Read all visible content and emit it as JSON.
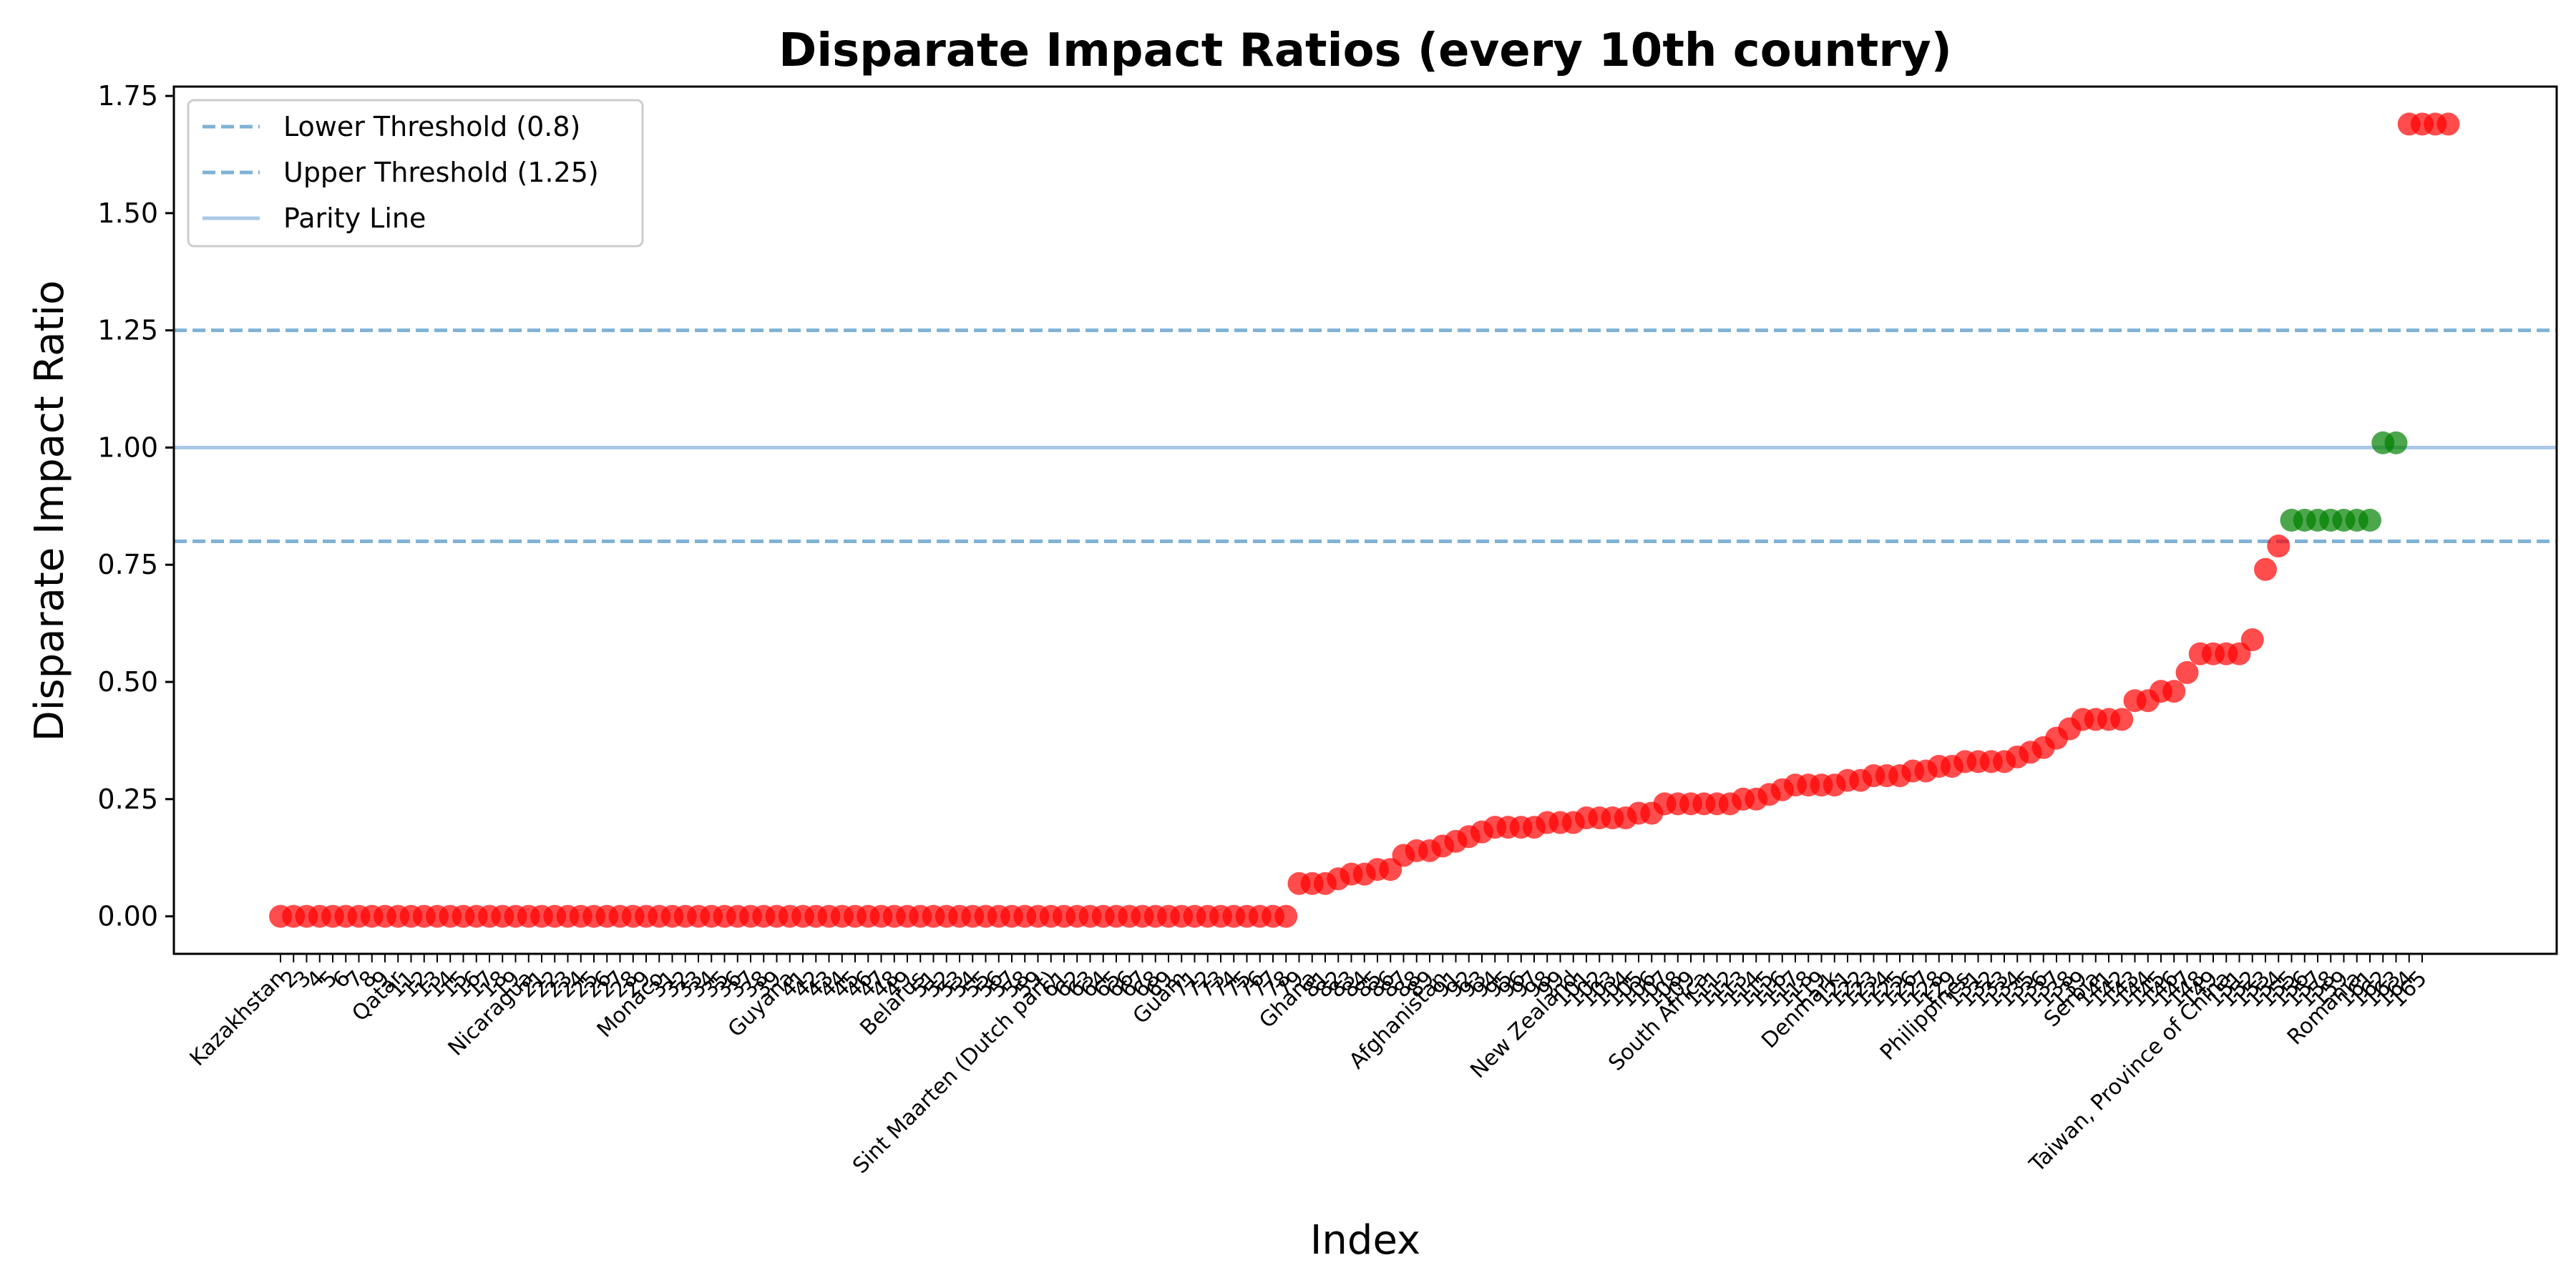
{
  "chart_data": {
    "type": "scatter",
    "title": "Disparate Impact Ratios (every 10th country)",
    "xlabel": "Index",
    "ylabel": "Disparate Impact Ratio",
    "ylim": [
      -0.08,
      1.77
    ],
    "yticks": [
      "0.00",
      "0.25",
      "0.50",
      "0.75",
      "1.00",
      "1.25",
      "1.50",
      "1.75"
    ],
    "grid": false,
    "legend_position": "top-left",
    "reference_lines": [
      {
        "name": "Lower Threshold (0.8)",
        "y": 0.8,
        "style": "dashed",
        "color": "#7fb2d5"
      },
      {
        "name": "Upper Threshold (1.25)",
        "y": 1.25,
        "style": "dashed",
        "color": "#7fb2d5"
      },
      {
        "name": "Parity Line",
        "y": 1.0,
        "style": "solid",
        "color": "#a9c8e8"
      }
    ],
    "colors": {
      "below_threshold": "#ff0000",
      "within_threshold": "#008000"
    },
    "x_tick_labels": [
      "Kazakhstan",
      "2",
      "3",
      "4",
      "5",
      "6",
      "7",
      "8",
      "9",
      "Qatar",
      "11",
      "12",
      "13",
      "14",
      "15",
      "16",
      "17",
      "18",
      "19",
      "Nicaragua",
      "21",
      "22",
      "23",
      "24",
      "25",
      "26",
      "27",
      "28",
      "29",
      "Monaco",
      "31",
      "32",
      "33",
      "34",
      "35",
      "36",
      "37",
      "38",
      "39",
      "Guyana",
      "41",
      "42",
      "43",
      "44",
      "45",
      "46",
      "47",
      "48",
      "49",
      "Belarus",
      "51",
      "52",
      "53",
      "54",
      "55",
      "56",
      "57",
      "58",
      "59",
      "Sint Maarten (Dutch part)",
      "61",
      "62",
      "63",
      "64",
      "65",
      "66",
      "67",
      "68",
      "69",
      "Guam",
      "71",
      "72",
      "73",
      "74",
      "75",
      "76",
      "77",
      "78",
      "79",
      "Ghana",
      "81",
      "82",
      "83",
      "84",
      "85",
      "86",
      "87",
      "88",
      "89",
      "Afghanistan",
      "91",
      "92",
      "93",
      "94",
      "95",
      "96",
      "97",
      "98",
      "99",
      "New Zealand",
      "101",
      "102",
      "103",
      "104",
      "105",
      "106",
      "107",
      "108",
      "109",
      "South Africa",
      "111",
      "112",
      "113",
      "114",
      "115",
      "116",
      "117",
      "118",
      "119",
      "Denmark",
      "121",
      "122",
      "123",
      "124",
      "125",
      "126",
      "127",
      "128",
      "129",
      "Philippines",
      "131",
      "132",
      "133",
      "134",
      "135",
      "136",
      "137",
      "138",
      "139",
      "Serbia",
      "141",
      "142",
      "143",
      "144",
      "145",
      "146",
      "147",
      "148",
      "149",
      "Taiwan, Province of China",
      "151",
      "152",
      "153",
      "154",
      "155",
      "156",
      "157",
      "158",
      "159",
      "Romania",
      "161",
      "162",
      "163",
      "164",
      "165"
    ],
    "values": [
      0.0,
      0.0,
      0.0,
      0.0,
      0.0,
      0.0,
      0.0,
      0.0,
      0.0,
      0.0,
      0.0,
      0.0,
      0.0,
      0.0,
      0.0,
      0.0,
      0.0,
      0.0,
      0.0,
      0.0,
      0.0,
      0.0,
      0.0,
      0.0,
      0.0,
      0.0,
      0.0,
      0.0,
      0.0,
      0.0,
      0.0,
      0.0,
      0.0,
      0.0,
      0.0,
      0.0,
      0.0,
      0.0,
      0.0,
      0.0,
      0.0,
      0.0,
      0.0,
      0.0,
      0.0,
      0.0,
      0.0,
      0.0,
      0.0,
      0.0,
      0.0,
      0.0,
      0.0,
      0.0,
      0.0,
      0.0,
      0.0,
      0.0,
      0.0,
      0.0,
      0.0,
      0.0,
      0.0,
      0.0,
      0.0,
      0.0,
      0.0,
      0.0,
      0.0,
      0.0,
      0.0,
      0.0,
      0.0,
      0.0,
      0.0,
      0.0,
      0.0,
      0.0,
      0.07,
      0.07,
      0.07,
      0.08,
      0.09,
      0.09,
      0.1,
      0.1,
      0.13,
      0.14,
      0.14,
      0.15,
      0.16,
      0.17,
      0.18,
      0.19,
      0.19,
      0.19,
      0.19,
      0.2,
      0.2,
      0.2,
      0.21,
      0.21,
      0.21,
      0.21,
      0.22,
      0.22,
      0.24,
      0.24,
      0.24,
      0.24,
      0.24,
      0.24,
      0.25,
      0.25,
      0.26,
      0.27,
      0.28,
      0.28,
      0.28,
      0.28,
      0.29,
      0.29,
      0.3,
      0.3,
      0.3,
      0.31,
      0.31,
      0.32,
      0.32,
      0.33,
      0.33,
      0.33,
      0.33,
      0.34,
      0.35,
      0.36,
      0.38,
      0.4,
      0.42,
      0.42,
      0.42,
      0.42,
      0.46,
      0.46,
      0.48,
      0.48,
      0.52,
      0.56,
      0.56,
      0.56,
      0.56,
      0.59,
      0.74,
      0.79,
      0.845,
      0.845,
      0.845,
      0.845,
      0.845,
      0.845,
      0.845,
      1.01,
      1.01,
      1.69,
      1.69,
      1.69,
      1.69
    ]
  }
}
